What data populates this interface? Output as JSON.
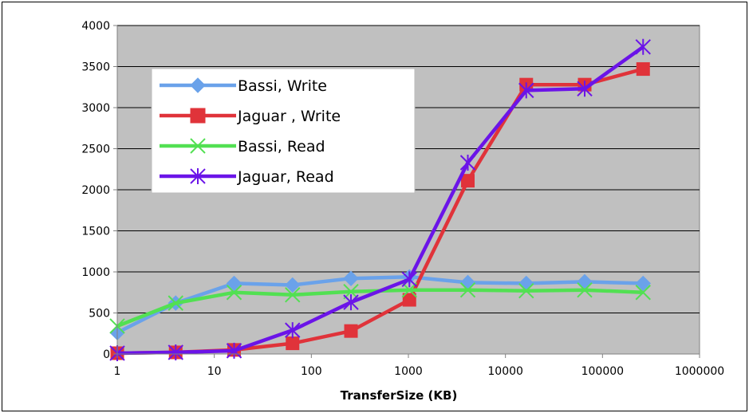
{
  "chart_data": {
    "type": "line",
    "title": "",
    "xlabel": "TransferSize (KB)",
    "ylabel": "",
    "x_scale": "log",
    "xlim": [
      1,
      1000000
    ],
    "ylim": [
      0,
      4000
    ],
    "x_ticks": [
      1,
      10,
      100,
      1000,
      10000,
      100000,
      1000000
    ],
    "x_tick_labels": [
      "1",
      "10",
      "100",
      "1000",
      "10000",
      "100000",
      "1000000"
    ],
    "y_ticks": [
      0,
      500,
      1000,
      1500,
      2000,
      2500,
      3000,
      3500,
      4000
    ],
    "y_tick_labels": [
      "0",
      "500",
      "1000",
      "1500",
      "2000",
      "2500",
      "3000",
      "3500",
      "4000"
    ],
    "grid": "horizontal",
    "plot_background": "#c0c0c0",
    "legend_position": "top-left",
    "x": [
      1,
      4,
      16,
      64,
      256,
      1024,
      4096,
      16384,
      65536,
      262144
    ],
    "series": [
      {
        "name": "Bassi, Write",
        "color": "#6aa2ea",
        "marker": "diamond",
        "values": [
          260,
          620,
          860,
          840,
          920,
          940,
          870,
          860,
          880,
          860
        ]
      },
      {
        "name": "Jaguar , Write",
        "color": "#e0333a",
        "marker": "square",
        "values": [
          10,
          20,
          50,
          130,
          280,
          660,
          2110,
          3280,
          3280,
          3470
        ]
      },
      {
        "name": "Bassi, Read",
        "color": "#52e052",
        "marker": "x",
        "values": [
          340,
          620,
          750,
          720,
          760,
          780,
          780,
          770,
          780,
          750
        ]
      },
      {
        "name": "Jaguar, Read",
        "color": "#6b14e8",
        "marker": "star",
        "values": [
          10,
          20,
          40,
          290,
          630,
          910,
          2330,
          3210,
          3230,
          3740
        ]
      }
    ]
  }
}
